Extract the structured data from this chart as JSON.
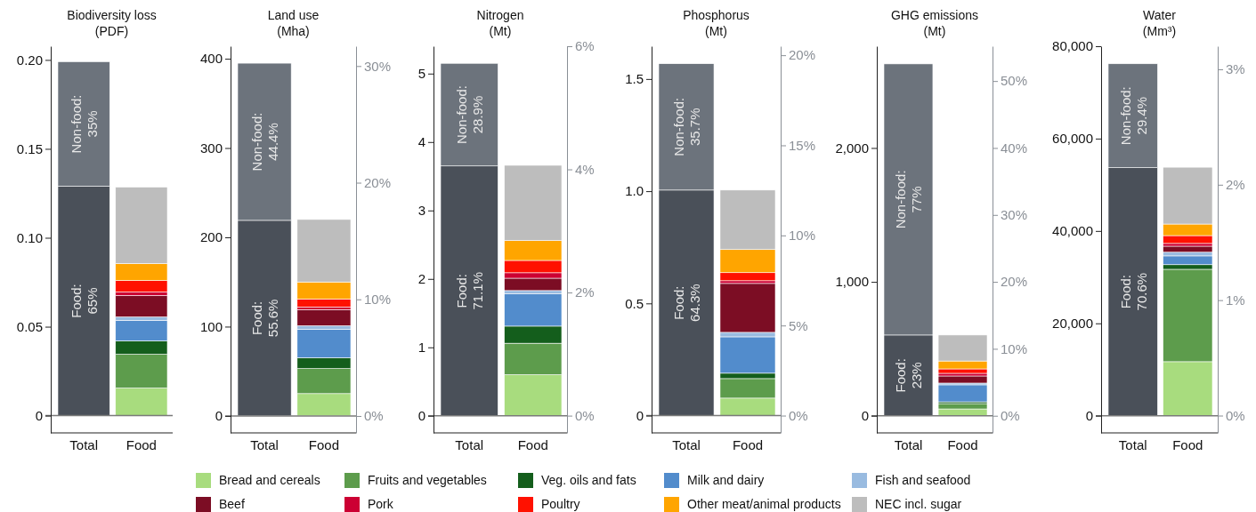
{
  "chart_data": [
    {
      "type": "bar",
      "stacked": true,
      "title": "Biodiversity loss",
      "subtitle": "(PDF)",
      "categories": [
        "Total",
        "Food"
      ],
      "ylim": [
        -0.0097,
        0.2077
      ],
      "yticks": [
        0,
        0.05,
        {
          "value": 0.1,
          "label": "0.10"
        },
        0.15,
        {
          "value": 0.2,
          "label": "0.20"
        }
      ],
      "legend": "bottom",
      "ref_lines": [
        {
          "axis": "y",
          "value": 0,
          "color": "#7a7a7a"
        }
      ],
      "annotations": [
        "Food: 65%",
        "Non-food: 35%"
      ],
      "series": [
        {
          "color": "#4a5059",
          "values": [
            0.129,
            null
          ]
        },
        {
          "color": "#6c737c",
          "values": [
            0.07,
            null
          ]
        },
        {
          "name": "Bread and cereals",
          "color": "#a8dc7e",
          "values": [
            null,
            0.0155
          ]
        },
        {
          "name": "Fruits and vegetables",
          "color": "#5d9c4c",
          "values": [
            null,
            0.019
          ]
        },
        {
          "name": "Veg. oils and fats",
          "color": "#145e1c",
          "values": [
            null,
            0.0075
          ]
        },
        {
          "name": "Milk and dairy",
          "color": "#528ccc",
          "values": [
            null,
            0.0115
          ]
        },
        {
          "name": "Fish and seafood",
          "color": "#99bbe0",
          "values": [
            null,
            0.002
          ]
        },
        {
          "name": "Beef",
          "color": "#7c0d24",
          "values": [
            null,
            0.012
          ]
        },
        {
          "name": "Pork",
          "color": "#cc0033",
          "values": [
            null,
            0.002
          ]
        },
        {
          "name": "Poultry",
          "color": "#ff1100",
          "values": [
            null,
            0.0065
          ]
        },
        {
          "name": "Other meat/animal products",
          "color": "#ffa500",
          "values": [
            null,
            0.0095
          ]
        },
        {
          "name": "NEC incl. sugar",
          "color": "#bdbdbd",
          "values": [
            null,
            0.043
          ]
        }
      ]
    },
    {
      "type": "bar",
      "stacked": true,
      "title": "Land use",
      "subtitle": "(Mha)",
      "categories": [
        "Total",
        "Food"
      ],
      "ylim": [
        -19,
        414
      ],
      "yticks": [
        0,
        100,
        200,
        300,
        400
      ],
      "y2lim": [
        -1.45,
        31.7
      ],
      "y2ticks": [
        {
          "value": 0,
          "label": "0%"
        },
        {
          "value": 10,
          "label": "10%"
        },
        {
          "value": 20,
          "label": "20%"
        },
        {
          "value": 30,
          "label": "30%"
        }
      ],
      "ref_lines": [
        {
          "axis": "y",
          "value": 0,
          "color": "#7a7a7a"
        }
      ],
      "annotations": [
        "Food: 55.6%",
        "Non-food: 44.4%"
      ],
      "series": [
        {
          "color": "#4a5059",
          "values": [
            219,
            null
          ]
        },
        {
          "color": "#6c737c",
          "values": [
            176,
            null
          ]
        },
        {
          "color": "#a8dc7e",
          "values": [
            null,
            25
          ]
        },
        {
          "color": "#5d9c4c",
          "values": [
            null,
            28
          ]
        },
        {
          "color": "#145e1c",
          "values": [
            null,
            12
          ]
        },
        {
          "color": "#528ccc",
          "values": [
            null,
            32
          ]
        },
        {
          "color": "#99bbe0",
          "values": [
            null,
            4
          ]
        },
        {
          "color": "#7c0d24",
          "values": [
            null,
            18
          ]
        },
        {
          "color": "#cc0033",
          "values": [
            null,
            3
          ]
        },
        {
          "color": "#ff1100",
          "values": [
            null,
            9
          ]
        },
        {
          "color": "#ffa500",
          "values": [
            null,
            19
          ]
        },
        {
          "color": "#bdbdbd",
          "values": [
            null,
            70
          ]
        }
      ]
    },
    {
      "type": "bar",
      "stacked": true,
      "title": "Nitrogen",
      "subtitle": "(Mt)",
      "categories": [
        "Total",
        "Food"
      ],
      "ylim": [
        -0.25,
        5.4
      ],
      "yticks": [
        0,
        1,
        2,
        3,
        4,
        5
      ],
      "y2lim": [
        -0.28,
        6
      ],
      "y2ticks": [
        {
          "value": 0,
          "label": "0%"
        },
        {
          "value": 2,
          "label": "2%"
        },
        {
          "value": 4,
          "label": "4%"
        },
        {
          "value": 6,
          "label": "6%"
        }
      ],
      "ref_lines": [
        {
          "axis": "y",
          "value": 0,
          "color": "#7a7a7a"
        }
      ],
      "annotations": [
        "Food: 71.1%",
        "Non-food: 28.9%"
      ],
      "series": [
        {
          "color": "#4a5059",
          "values": [
            3.65,
            null
          ]
        },
        {
          "color": "#6c737c",
          "values": [
            1.5,
            null
          ]
        },
        {
          "color": "#a8dc7e",
          "values": [
            null,
            0.6
          ]
        },
        {
          "color": "#5d9c4c",
          "values": [
            null,
            0.46
          ]
        },
        {
          "color": "#145e1c",
          "values": [
            null,
            0.25
          ]
        },
        {
          "color": "#528ccc",
          "values": [
            null,
            0.47
          ]
        },
        {
          "color": "#99bbe0",
          "values": [
            null,
            0.05
          ]
        },
        {
          "color": "#7c0d24",
          "values": [
            null,
            0.18
          ]
        },
        {
          "color": "#cc0033",
          "values": [
            null,
            0.08
          ]
        },
        {
          "color": "#ff1100",
          "values": [
            null,
            0.18
          ]
        },
        {
          "color": "#ffa500",
          "values": [
            null,
            0.29
          ]
        },
        {
          "color": "#bdbdbd",
          "values": [
            null,
            1.1
          ]
        }
      ]
    },
    {
      "type": "bar",
      "stacked": true,
      "title": "Phosphorus",
      "subtitle": "(Mt)",
      "categories": [
        "Total",
        "Food"
      ],
      "ylim": [
        -0.077,
        1.646
      ],
      "yticks": [
        0,
        0.5,
        {
          "value": 1,
          "label": "1.0"
        },
        1.5
      ],
      "y2lim": [
        -0.96,
        20.5
      ],
      "y2ticks": [
        {
          "value": 0,
          "label": "0%"
        },
        {
          "value": 5,
          "label": "5%"
        },
        {
          "value": 10,
          "label": "10%"
        },
        {
          "value": 15,
          "label": "15%"
        },
        {
          "value": 20,
          "label": "20%"
        }
      ],
      "ref_lines": [
        {
          "axis": "y",
          "value": 0,
          "color": "#7a7a7a"
        }
      ],
      "annotations": [
        "Food: 64.3%",
        "Non-food: 35.7%"
      ],
      "series": [
        {
          "color": "#4a5059",
          "values": [
            1.005,
            null
          ]
        },
        {
          "color": "#6c737c",
          "values": [
            0.563,
            null
          ]
        },
        {
          "color": "#a8dc7e",
          "values": [
            null,
            0.078
          ]
        },
        {
          "color": "#5d9c4c",
          "values": [
            null,
            0.087
          ]
        },
        {
          "color": "#145e1c",
          "values": [
            null,
            0.024
          ]
        },
        {
          "color": "#528ccc",
          "values": [
            null,
            0.162
          ]
        },
        {
          "color": "#99bbe0",
          "values": [
            null,
            0.02
          ]
        },
        {
          "color": "#7c0d24",
          "values": [
            null,
            0.218
          ]
        },
        {
          "color": "#cc0033",
          "values": [
            null,
            0.012
          ]
        },
        {
          "color": "#ff1100",
          "values": [
            null,
            0.036
          ]
        },
        {
          "color": "#ffa500",
          "values": [
            null,
            0.103
          ]
        },
        {
          "color": "#bdbdbd",
          "values": [
            null,
            0.265
          ]
        }
      ]
    },
    {
      "type": "bar",
      "stacked": true,
      "title": "GHG emissions",
      "subtitle": "(Mt)",
      "categories": [
        "Total",
        "Food"
      ],
      "ylim": [
        -128,
        2760
      ],
      "yticks": [
        0,
        {
          "value": 1000,
          "label": "1,000"
        },
        {
          "value": 2000,
          "label": "2,000"
        }
      ],
      "y2lim": [
        -2.56,
        55.2
      ],
      "y2ticks": [
        {
          "value": 0,
          "label": "0%"
        },
        {
          "value": 10,
          "label": "10%"
        },
        {
          "value": 20,
          "label": "20%"
        },
        {
          "value": 30,
          "label": "30%"
        },
        {
          "value": 40,
          "label": "40%"
        },
        {
          "value": 50,
          "label": "50%"
        }
      ],
      "ref_lines": [
        {
          "axis": "y",
          "value": 0,
          "color": "#7a7a7a"
        }
      ],
      "annotations": [
        "Food: 23%",
        "Non-food: 77%"
      ],
      "series": [
        {
          "color": "#4a5059",
          "values": [
            603,
            null
          ]
        },
        {
          "color": "#6c737c",
          "values": [
            2025,
            null
          ]
        },
        {
          "color": "#a8dc7e",
          "values": [
            null,
            51
          ]
        },
        {
          "color": "#5d9c4c",
          "values": [
            null,
            40
          ]
        },
        {
          "color": "#145e1c",
          "values": [
            null,
            13
          ]
        },
        {
          "color": "#528ccc",
          "values": [
            null,
            127
          ]
        },
        {
          "color": "#99bbe0",
          "values": [
            null,
            13
          ]
        },
        {
          "color": "#7c0d24",
          "values": [
            null,
            53
          ]
        },
        {
          "color": "#cc0033",
          "values": [
            null,
            20
          ]
        },
        {
          "color": "#ff1100",
          "values": [
            null,
            33
          ]
        },
        {
          "color": "#ffa500",
          "values": [
            null,
            59
          ]
        },
        {
          "color": "#bdbdbd",
          "values": [
            null,
            194
          ]
        }
      ]
    },
    {
      "type": "bar",
      "stacked": true,
      "title": "Water",
      "subtitle": "(Mm³)",
      "categories": [
        "Total",
        "Food"
      ],
      "ylim": [
        -3720,
        80000
      ],
      "yticks": [
        0,
        {
          "value": 20000,
          "label": "20,000"
        },
        {
          "value": 40000,
          "label": "40,000"
        },
        {
          "value": 60000,
          "label": "60,000"
        },
        {
          "value": 80000,
          "label": "80,000"
        }
      ],
      "y2lim": [
        -0.15,
        3.2
      ],
      "y2ticks": [
        {
          "value": 0,
          "label": "0%"
        },
        {
          "value": 1,
          "label": "1%"
        },
        {
          "value": 2,
          "label": "2%"
        },
        {
          "value": 3,
          "label": "3%"
        }
      ],
      "ref_lines": [
        {
          "axis": "y",
          "value": 0,
          "color": "#7a7a7a"
        }
      ],
      "annotations": [
        "Food: 70.6%",
        "Non-food: 29.4%"
      ],
      "series": [
        {
          "color": "#4a5059",
          "values": [
            53700,
            null
          ]
        },
        {
          "color": "#6c737c",
          "values": [
            22500,
            null
          ]
        },
        {
          "color": "#a8dc7e",
          "values": [
            null,
            11700
          ]
        },
        {
          "color": "#5d9c4c",
          "values": [
            null,
            20000
          ]
        },
        {
          "color": "#145e1c",
          "values": [
            null,
            1000
          ]
        },
        {
          "color": "#528ccc",
          "values": [
            null,
            1900
          ]
        },
        {
          "color": "#99bbe0",
          "values": [
            null,
            800
          ]
        },
        {
          "color": "#7c0d24",
          "values": [
            null,
            1300
          ]
        },
        {
          "color": "#cc0033",
          "values": [
            null,
            600
          ]
        },
        {
          "color": "#ff1100",
          "values": [
            null,
            1700
          ]
        },
        {
          "color": "#ffa500",
          "values": [
            null,
            2500
          ]
        },
        {
          "color": "#bdbdbd",
          "values": [
            null,
            12300
          ]
        }
      ]
    }
  ]
}
